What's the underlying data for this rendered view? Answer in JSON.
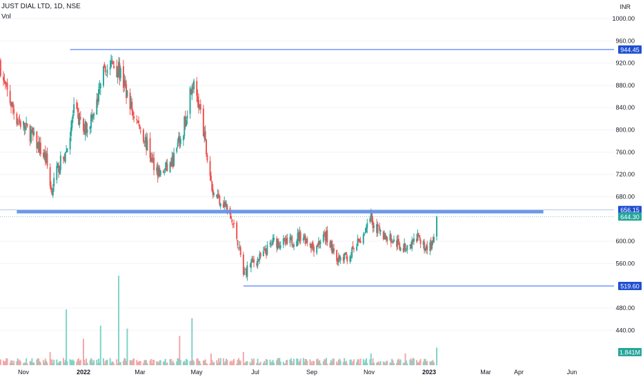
{
  "header": {
    "symbol": "JUST DIAL LTD, 1D, NSE",
    "volume_label": "Vol",
    "currency": "INR"
  },
  "colors": {
    "up": "#26a69a",
    "down": "#ef5350",
    "up_vol": "#7fd3c7",
    "down_vol": "#f4a6a6",
    "line": "#2962ff",
    "zone": "#5b8ee6",
    "grid": "#f0f3fa",
    "axis_text": "#131722"
  },
  "chart_data": {
    "type": "candlestick",
    "y_axis": {
      "ticks": [
        1000.0,
        960.0,
        920.0,
        880.0,
        840.0,
        800.0,
        760.0,
        720.0,
        680.0,
        600.0,
        560.0,
        480.0,
        440.0
      ],
      "range": [
        396,
        1020
      ]
    },
    "x_axis": {
      "labels": [
        "Nov",
        "2022",
        "Mar",
        "May",
        "Jul",
        "Sep",
        "Nov",
        "2023",
        "Mar",
        "Apr",
        "Jun"
      ]
    },
    "price_labels": [
      {
        "text": "944.45",
        "value": 944.45,
        "kind": "line"
      },
      {
        "text": "656.15",
        "value": 656.15,
        "kind": "line"
      },
      {
        "text": "644.30",
        "value": 644.3,
        "kind": "last"
      },
      {
        "text": "519.60",
        "value": 519.6,
        "kind": "line"
      }
    ],
    "volume_label": "1.841M",
    "horizontal_levels": [
      {
        "value": 944.45,
        "from": "2021-12-20",
        "to": "right"
      },
      {
        "value": 519.6,
        "from": "2022-06-20",
        "to": "right"
      }
    ],
    "support_zone": {
      "from_value": 650,
      "to_value": 656.15,
      "start": "2021-10-25",
      "end": "2023-05-01"
    },
    "volume_ylim": [
      0,
      62
    ],
    "price_path": [
      [
        "2021-09-25",
        1020
      ],
      [
        "2021-10-12",
        880
      ],
      [
        "2021-10-25",
        820
      ],
      [
        "2021-11-10",
        790
      ],
      [
        "2021-11-25",
        745
      ],
      [
        "2021-11-30",
        690
      ],
      [
        "2021-12-08",
        735
      ],
      [
        "2021-12-16",
        760
      ],
      [
        "2021-12-24",
        835
      ],
      [
        "2022-01-03",
        800
      ],
      [
        "2022-01-15",
        830
      ],
      [
        "2022-01-24",
        900
      ],
      [
        "2022-02-02",
        920
      ],
      [
        "2022-02-10",
        905
      ],
      [
        "2022-02-24",
        830
      ],
      [
        "2022-03-07",
        790
      ],
      [
        "2022-03-16",
        745
      ],
      [
        "2022-03-25",
        720
      ],
      [
        "2022-04-06",
        740
      ],
      [
        "2022-04-18",
        800
      ],
      [
        "2022-04-27",
        890
      ],
      [
        "2022-05-05",
        840
      ],
      [
        "2022-05-12",
        760
      ],
      [
        "2022-05-19",
        690
      ],
      [
        "2022-06-01",
        665
      ],
      [
        "2022-06-09",
        630
      ],
      [
        "2022-06-15",
        595
      ],
      [
        "2022-06-20",
        540
      ],
      [
        "2022-06-28",
        560
      ],
      [
        "2022-07-08",
        570
      ],
      [
        "2022-07-22",
        600
      ],
      [
        "2022-08-05",
        595
      ],
      [
        "2022-08-20",
        612
      ],
      [
        "2022-09-02",
        590
      ],
      [
        "2022-09-15",
        610
      ],
      [
        "2022-09-28",
        565
      ],
      [
        "2022-10-10",
        575
      ],
      [
        "2022-10-20",
        600
      ],
      [
        "2022-11-01",
        640
      ],
      [
        "2022-11-10",
        615
      ],
      [
        "2022-11-25",
        600
      ],
      [
        "2022-12-08",
        585
      ],
      [
        "2022-12-20",
        605
      ],
      [
        "2022-12-28",
        590
      ],
      [
        "2023-01-05",
        592
      ],
      [
        "2023-01-09",
        644.3
      ]
    ],
    "volume_spikes": [
      [
        "2021-11-29",
        9
      ],
      [
        "2021-12-16",
        38
      ],
      [
        "2022-01-03",
        18
      ],
      [
        "2022-01-21",
        27
      ],
      [
        "2022-02-09",
        61
      ],
      [
        "2022-02-18",
        25
      ],
      [
        "2022-04-14",
        20
      ],
      [
        "2022-04-27",
        32
      ],
      [
        "2022-05-17",
        8
      ],
      [
        "2022-06-20",
        9
      ],
      [
        "2022-09-15",
        5
      ],
      [
        "2022-11-01",
        8
      ],
      [
        "2022-12-07",
        8
      ],
      [
        "2023-01-09",
        12
      ]
    ]
  }
}
